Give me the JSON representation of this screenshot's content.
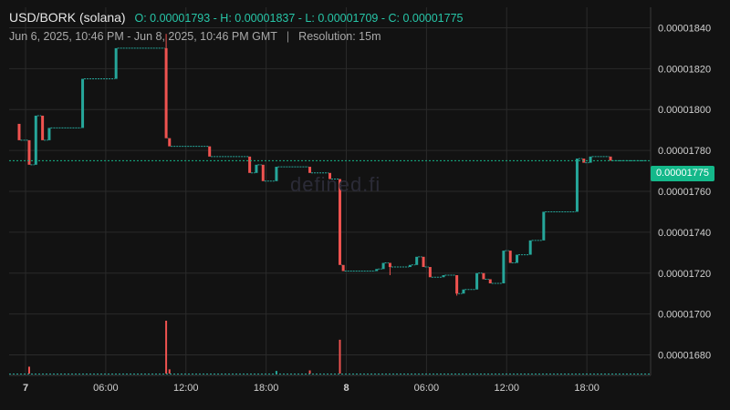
{
  "header": {
    "symbol": "USD/BORK (solana)",
    "ohlc": "O: 0.00001793 - H: 0.00001837 - L: 0.00001709 - C: 0.00001775",
    "range": "Jun 6, 2025, 10:46 PM - Jun 8, 2025, 10:46 PM GMT",
    "separator": "|",
    "resolution": "Resolution: 15m"
  },
  "watermark": "defined.fi",
  "last_price_tag": "0.00001775",
  "colors": {
    "up": "#26a69a",
    "down": "#ef5350",
    "background": "#121212",
    "grid": "#2a2a2a",
    "tag": "#14b88a"
  },
  "chart_data": {
    "type": "candlestick",
    "x_unit": "hours since Jun 6, 2025 22:46 GMT",
    "xlim": [
      0,
      48
    ],
    "ylim": [
      1.67e-05,
      1.85e-05
    ],
    "y_ticks": [
      "0.00001680",
      "0.00001700",
      "0.00001720",
      "0.00001740",
      "0.00001760",
      "0.00001780",
      "0.00001800",
      "0.00001820",
      "0.00001840"
    ],
    "y_tick_values": [
      1.68e-05,
      1.7e-05,
      1.72e-05,
      1.74e-05,
      1.76e-05,
      1.78e-05,
      1.8e-05,
      1.82e-05,
      1.84e-05
    ],
    "x_ticks": [
      {
        "label": "7",
        "t": 1.23,
        "bold": true
      },
      {
        "label": "06:00",
        "t": 7.23,
        "bold": false
      },
      {
        "label": "12:00",
        "t": 13.23,
        "bold": false
      },
      {
        "label": "18:00",
        "t": 19.23,
        "bold": false
      },
      {
        "label": "8",
        "t": 25.23,
        "bold": true
      },
      {
        "label": "06:00",
        "t": 31.23,
        "bold": false
      },
      {
        "label": "12:00",
        "t": 37.23,
        "bold": false
      },
      {
        "label": "18:00",
        "t": 43.23,
        "bold": false
      }
    ],
    "last_price": 1.775e-05,
    "candles": [
      {
        "t": 0.75,
        "o": 1.793e-05,
        "c": 1.785e-05
      },
      {
        "t": 1.5,
        "o": 1.785e-05,
        "c": 1.773e-05
      },
      {
        "t": 2.0,
        "o": 1.773e-05,
        "c": 1.797e-05
      },
      {
        "t": 2.5,
        "o": 1.797e-05,
        "c": 1.785e-05
      },
      {
        "t": 3.0,
        "o": 1.785e-05,
        "c": 1.791e-05
      },
      {
        "t": 5.5,
        "o": 1.791e-05,
        "c": 1.815e-05
      },
      {
        "t": 8.0,
        "o": 1.815e-05,
        "c": 1.83e-05
      },
      {
        "t": 11.75,
        "o": 1.83e-05,
        "c": 1.786e-05,
        "h": 1.837e-05
      },
      {
        "t": 12.0,
        "o": 1.786e-05,
        "c": 1.782e-05
      },
      {
        "t": 15.0,
        "o": 1.782e-05,
        "c": 1.777e-05
      },
      {
        "t": 18.0,
        "o": 1.777e-05,
        "c": 1.769e-05
      },
      {
        "t": 18.5,
        "o": 1.769e-05,
        "c": 1.773e-05
      },
      {
        "t": 19.0,
        "o": 1.773e-05,
        "c": 1.765e-05
      },
      {
        "t": 20.0,
        "o": 1.765e-05,
        "c": 1.772e-05
      },
      {
        "t": 22.5,
        "o": 1.772e-05,
        "c": 1.769e-05
      },
      {
        "t": 24.0,
        "o": 1.769e-05,
        "c": 1.766e-05
      },
      {
        "t": 24.75,
        "o": 1.766e-05,
        "c": 1.724e-05
      },
      {
        "t": 25.0,
        "o": 1.724e-05,
        "c": 1.721e-05
      },
      {
        "t": 27.5,
        "o": 1.721e-05,
        "c": 1.722e-05
      },
      {
        "t": 28.0,
        "o": 1.722e-05,
        "c": 1.725e-05
      },
      {
        "t": 28.5,
        "o": 1.725e-05,
        "c": 1.723e-05,
        "l": 1.719e-05
      },
      {
        "t": 30.0,
        "o": 1.723e-05,
        "c": 1.724e-05
      },
      {
        "t": 30.5,
        "o": 1.724e-05,
        "c": 1.728e-05
      },
      {
        "t": 31.0,
        "o": 1.728e-05,
        "c": 1.723e-05
      },
      {
        "t": 31.5,
        "o": 1.723e-05,
        "c": 1.718e-05
      },
      {
        "t": 32.5,
        "o": 1.718e-05,
        "c": 1.719e-05
      },
      {
        "t": 33.5,
        "o": 1.719e-05,
        "c": 1.71e-05,
        "l": 1.709e-05
      },
      {
        "t": 34.0,
        "o": 1.71e-05,
        "c": 1.712e-05
      },
      {
        "t": 35.0,
        "o": 1.712e-05,
        "c": 1.72e-05
      },
      {
        "t": 35.5,
        "o": 1.72e-05,
        "c": 1.717e-05
      },
      {
        "t": 36.0,
        "o": 1.717e-05,
        "c": 1.715e-05
      },
      {
        "t": 37.0,
        "o": 1.715e-05,
        "c": 1.731e-05
      },
      {
        "t": 37.5,
        "o": 1.731e-05,
        "c": 1.725e-05
      },
      {
        "t": 38.0,
        "o": 1.725e-05,
        "c": 1.729e-05
      },
      {
        "t": 39.0,
        "o": 1.729e-05,
        "c": 1.736e-05
      },
      {
        "t": 40.0,
        "o": 1.736e-05,
        "c": 1.75e-05
      },
      {
        "t": 42.5,
        "o": 1.75e-05,
        "c": 1.776e-05
      },
      {
        "t": 43.0,
        "o": 1.776e-05,
        "c": 1.774e-05
      },
      {
        "t": 43.5,
        "o": 1.774e-05,
        "c": 1.777e-05
      },
      {
        "t": 45.0,
        "o": 1.777e-05,
        "c": 1.775e-05
      }
    ],
    "volume_peaks": [
      {
        "t": 1.5,
        "v": 0.13
      },
      {
        "t": 11.75,
        "v": 1.0
      },
      {
        "t": 12.0,
        "v": 0.08
      },
      {
        "t": 20.0,
        "v": 0.05
      },
      {
        "t": 22.5,
        "v": 0.06
      },
      {
        "t": 24.75,
        "v": 0.64
      }
    ]
  }
}
